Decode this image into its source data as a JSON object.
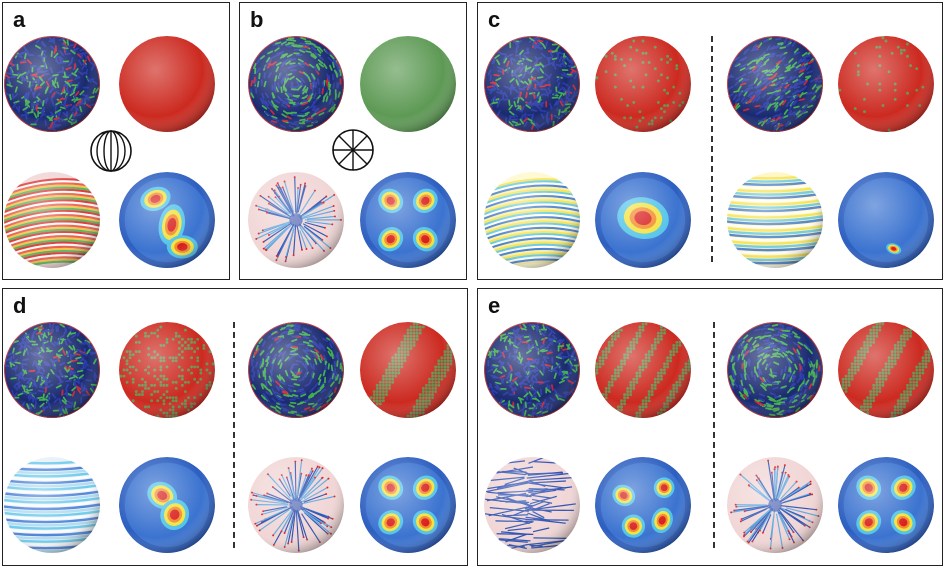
{
  "panels": [
    {
      "id": "a",
      "label": "a"
    },
    {
      "id": "b",
      "label": "b"
    },
    {
      "id": "c",
      "label": "c"
    },
    {
      "id": "d",
      "label": "d"
    },
    {
      "id": "e",
      "label": "e"
    }
  ],
  "colors": {
    "particle_red": "#cc2a20",
    "particle_green": "#5e9a55",
    "rod_blue": "#2a3aa8",
    "rod_green": "#3fae4a",
    "heat_blue": "#2d5fc0",
    "heat_cyan": "#4fc3e8",
    "heat_yellow": "#f2e23c",
    "heat_red": "#d81e1e",
    "field_pink": "#f1d6d6"
  },
  "icons": {
    "a": "globe-meridians-icon",
    "b": "wheel-spokes-icon"
  }
}
